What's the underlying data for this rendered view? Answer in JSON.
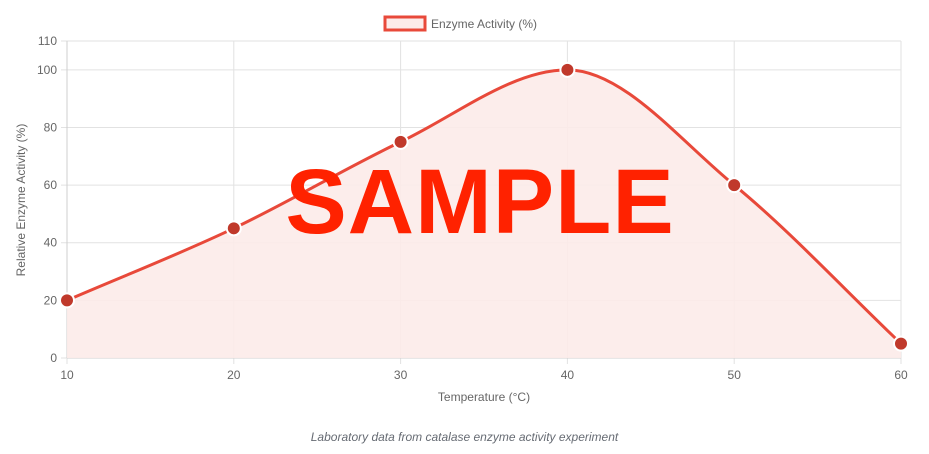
{
  "chart_data": {
    "type": "line",
    "title": "",
    "x": [
      10,
      20,
      30,
      40,
      50,
      60
    ],
    "series": [
      {
        "name": "Enzyme Activity (%)",
        "values": [
          20,
          45,
          75,
          100,
          60,
          5
        ]
      }
    ],
    "xlabel": "Temperature (°C)",
    "ylabel": "Relative Enzyme Activity (%)",
    "xlim": [
      10,
      60
    ],
    "ylim": [
      0,
      110
    ],
    "x_ticks": [
      "10",
      "20",
      "30",
      "40",
      "50",
      "60"
    ],
    "y_ticks": [
      "0",
      "20",
      "40",
      "60",
      "80",
      "100",
      "110"
    ],
    "grid": true,
    "legend": "top",
    "fill": true,
    "colors": {
      "line": "#e8493a",
      "fill": "#fcebe9",
      "point": "#c0392b"
    }
  },
  "caption": "Laboratory data from catalase enzyme activity experiment",
  "watermark": "SAMPLE"
}
